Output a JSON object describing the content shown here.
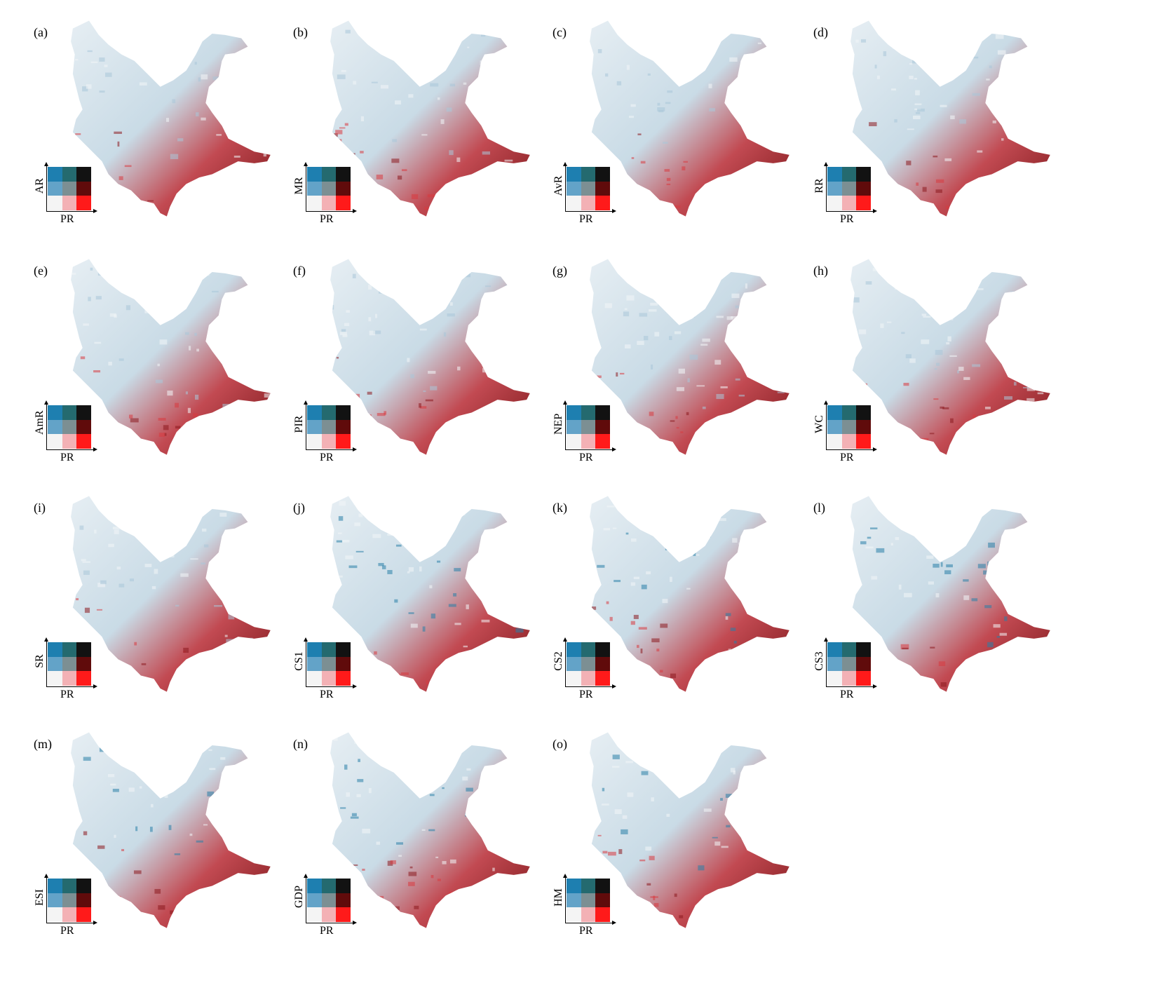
{
  "legend": {
    "x_label": "PR",
    "cells": [
      [
        "#1e7fb0",
        "#246a6f",
        "#121212"
      ],
      [
        "#63a3c8",
        "#7c8f93",
        "#600b0b"
      ],
      [
        "#bdd6e6",
        "#b48e95",
        "#a9151d"
      ],
      [
        "#f4f4f4",
        "#f3b1b5",
        "#ff1a1a"
      ]
    ]
  },
  "panels": [
    {
      "label": "(a)",
      "y_label": "AR"
    },
    {
      "label": "(b)",
      "y_label": "MR"
    },
    {
      "label": "(c)",
      "y_label": "AvR"
    },
    {
      "label": "(d)",
      "y_label": "RR"
    },
    {
      "label": "(e)",
      "y_label": "AmR"
    },
    {
      "label": "(f)",
      "y_label": "PIR"
    },
    {
      "label": "(g)",
      "y_label": "NEP"
    },
    {
      "label": "(h)",
      "y_label": "WC"
    },
    {
      "label": "(i)",
      "y_label": "SR"
    },
    {
      "label": "(j)",
      "y_label": "CS1"
    },
    {
      "label": "(k)",
      "y_label": "CS2"
    },
    {
      "label": "(l)",
      "y_label": "CS3"
    },
    {
      "label": "(m)",
      "y_label": "ESI"
    },
    {
      "label": "(n)",
      "y_label": "GDP"
    },
    {
      "label": "(o)",
      "y_label": "HM"
    }
  ],
  "colors": {
    "blue_high": "#1e7fb0",
    "red_high": "#ff1a1a",
    "dark": "#121212",
    "neutral": "#f4f4f4"
  }
}
